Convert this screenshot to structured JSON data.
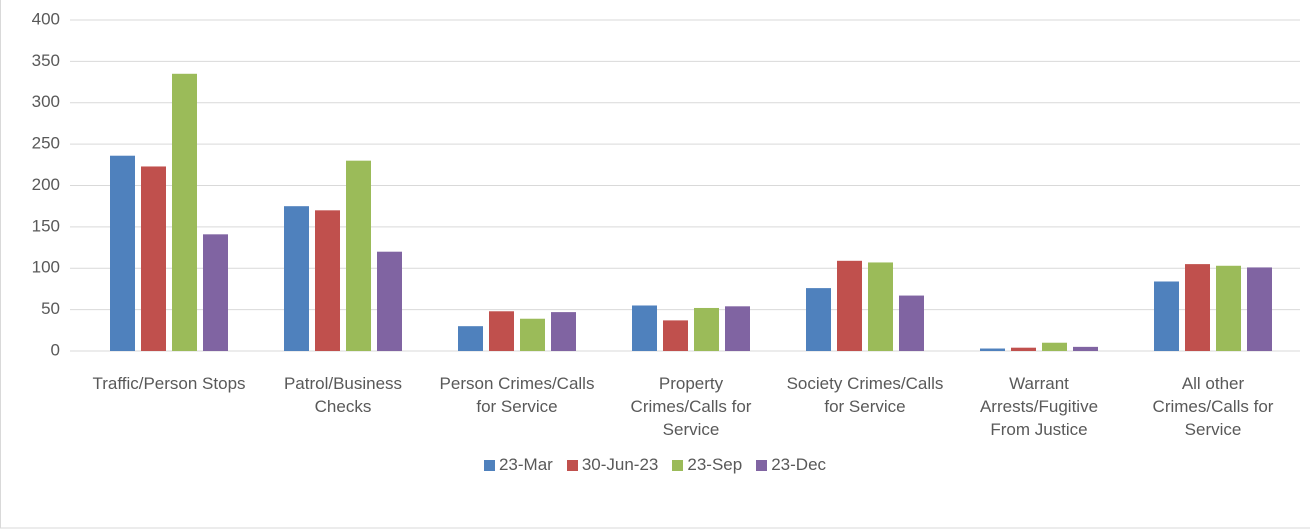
{
  "chart_data": {
    "type": "bar",
    "categories": [
      "Traffic/Person Stops",
      "Patrol/Business Checks",
      "Person Crimes/Calls for Service",
      "Property Crimes/Calls for Service",
      "Society Crimes/Calls for Service",
      "Warrant Arrests/Fugitive From Justice",
      "All other Crimes/Calls for Service"
    ],
    "series": [
      {
        "name": "23-Mar",
        "color": "#4f81bd",
        "values": [
          236,
          175,
          30,
          55,
          76,
          3,
          84
        ]
      },
      {
        "name": "30-Jun-23",
        "color": "#c0504d",
        "values": [
          223,
          170,
          48,
          37,
          109,
          4,
          105
        ]
      },
      {
        "name": "23-Sep",
        "color": "#9bbb59",
        "values": [
          335,
          230,
          39,
          52,
          107,
          10,
          103
        ]
      },
      {
        "name": "23-Dec",
        "color": "#8064a2",
        "values": [
          141,
          120,
          47,
          54,
          67,
          5,
          101
        ]
      }
    ],
    "ylim": [
      0,
      400
    ],
    "yticks": [
      0,
      50,
      100,
      150,
      200,
      250,
      300,
      350,
      400
    ],
    "grid": true,
    "legend": "bottom"
  }
}
